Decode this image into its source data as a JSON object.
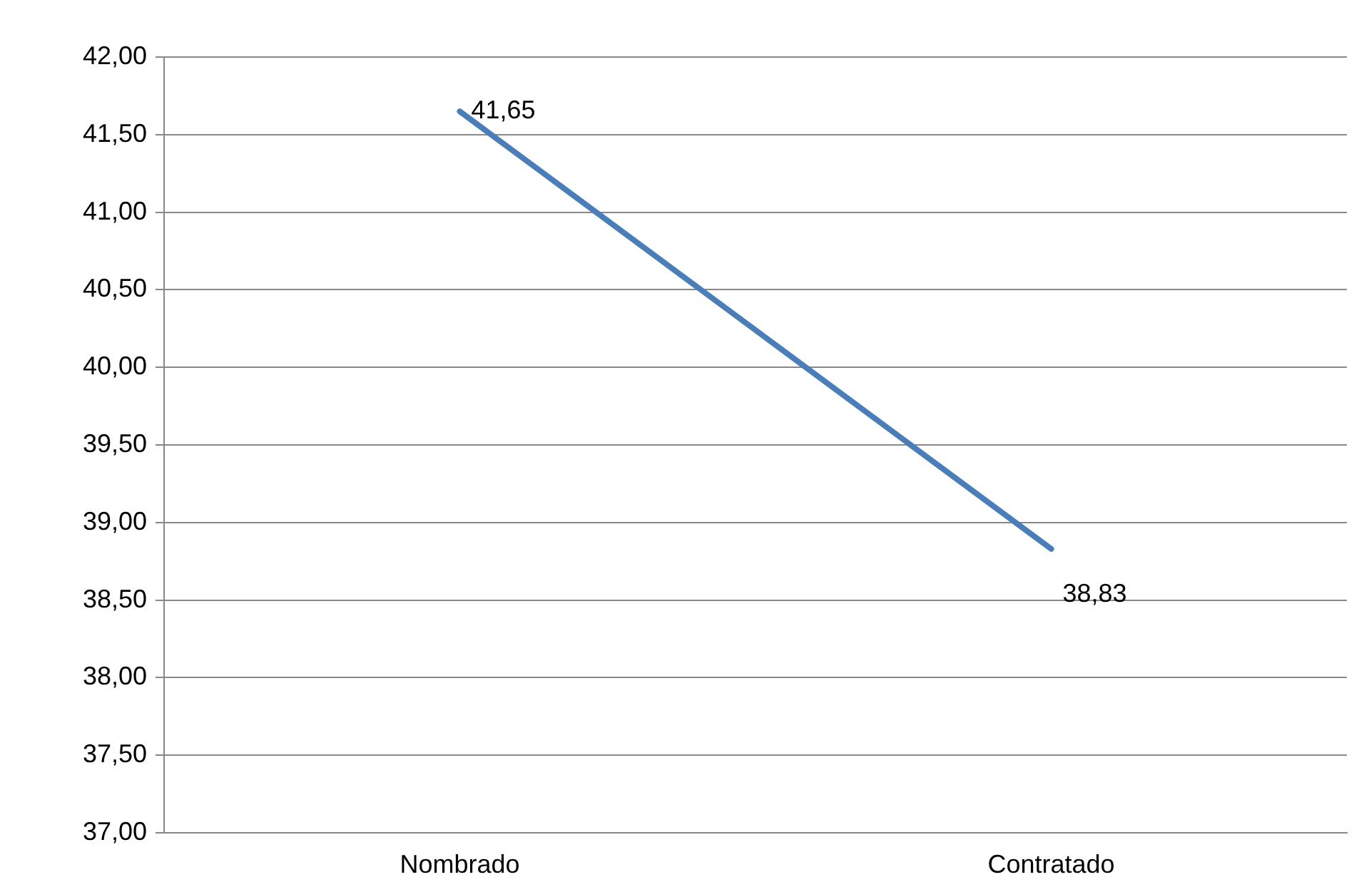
{
  "chart_data": {
    "type": "line",
    "categories": [
      "Nombrado",
      "Contratado"
    ],
    "series": [
      {
        "color": "#4a7ebb",
        "values": [
          41.65,
          38.83
        ],
        "value_labels": [
          "41,65",
          "38,83"
        ]
      }
    ],
    "ylim": [
      37,
      42
    ],
    "yticks": [
      {
        "value": 37,
        "label": "37,00"
      },
      {
        "value": 37.5,
        "label": "37,50"
      },
      {
        "value": 38,
        "label": "38,00"
      },
      {
        "value": 38.5,
        "label": "38,50"
      },
      {
        "value": 39,
        "label": "39,00"
      },
      {
        "value": 39.5,
        "label": "39,50"
      },
      {
        "value": 40,
        "label": "40,00"
      },
      {
        "value": 40.5,
        "label": "40,50"
      },
      {
        "value": 41,
        "label": "41,00"
      },
      {
        "value": 41.5,
        "label": "41,50"
      },
      {
        "value": 42,
        "label": "42,00"
      }
    ],
    "grid": "y",
    "legend": false,
    "marker": "none",
    "line_style": "solid"
  }
}
